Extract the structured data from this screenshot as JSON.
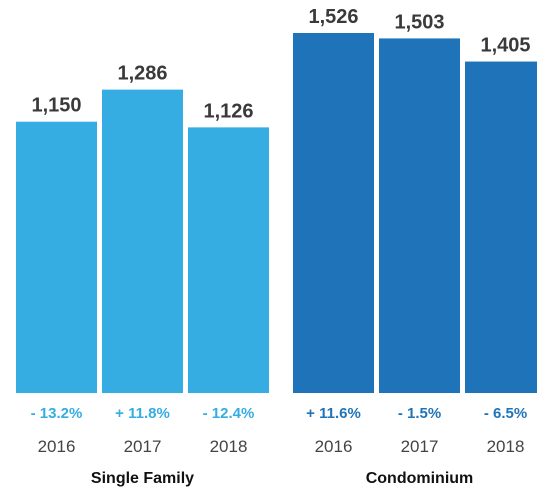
{
  "chart_data": {
    "type": "bar",
    "ylim": [
      0,
      1526
    ],
    "groups": [
      {
        "name": "Single Family",
        "color": "#35ade3",
        "bars": [
          {
            "year": "2016",
            "value": 1150,
            "value_label": "1,150",
            "change": "- 13.2%"
          },
          {
            "year": "2017",
            "value": 1286,
            "value_label": "1,286",
            "change": "+ 11.8%"
          },
          {
            "year": "2018",
            "value": 1126,
            "value_label": "1,126",
            "change": "- 12.4%"
          }
        ]
      },
      {
        "name": "Condominium",
        "color": "#1f74b9",
        "bars": [
          {
            "year": "2016",
            "value": 1526,
            "value_label": "1,526",
            "change": "+ 11.6%"
          },
          {
            "year": "2017",
            "value": 1503,
            "value_label": "1,503",
            "change": "- 1.5%"
          },
          {
            "year": "2018",
            "value": 1405,
            "value_label": "1,405",
            "change": "- 6.5%"
          }
        ]
      }
    ],
    "grid": false,
    "legend": "none"
  }
}
